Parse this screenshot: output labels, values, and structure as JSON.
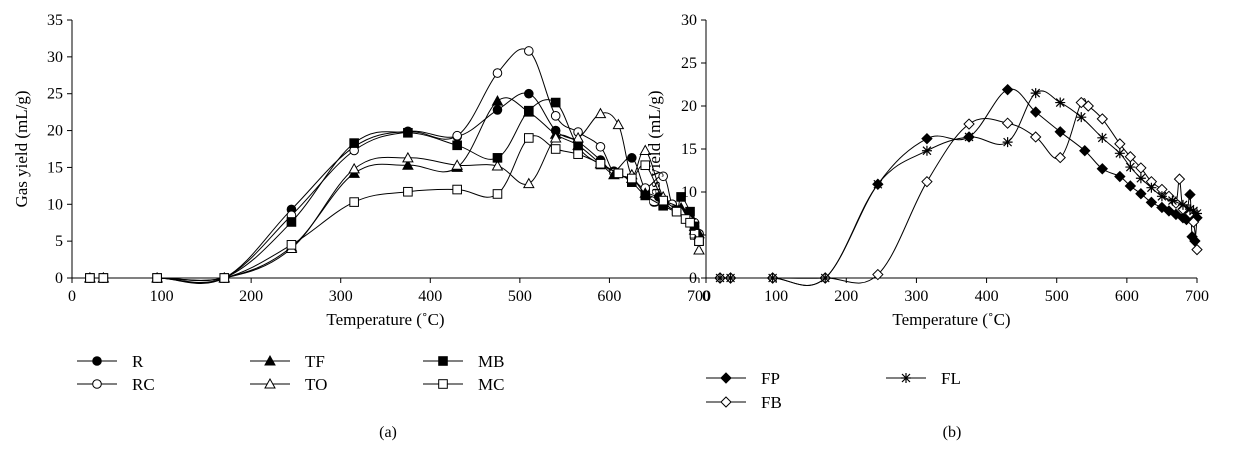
{
  "chart_data": [
    {
      "type": "line",
      "panel_label": "(a)",
      "xlabel": "Temperature (˚C)",
      "ylabel": "Gas yield (mL/g)",
      "xlim": [
        0,
        700
      ],
      "ylim": [
        0,
        35
      ],
      "xticks": [
        0,
        100,
        200,
        300,
        400,
        500,
        600,
        700
      ],
      "yticks": [
        0,
        5,
        10,
        15,
        20,
        25,
        30,
        35
      ],
      "grid": false,
      "legend_position": "bottom",
      "series": [
        {
          "name": "R",
          "marker": "circle-filled",
          "x": [
            20,
            35,
            95,
            170,
            245,
            315,
            375,
            430,
            475,
            510,
            540,
            565,
            590,
            605,
            625,
            640,
            655,
            670,
            680,
            690,
            695,
            700
          ],
          "y": [
            0,
            0,
            0,
            0,
            9.3,
            17.8,
            19.9,
            19.2,
            22.8,
            25.0,
            20.0,
            18.5,
            16.0,
            14.5,
            16.3,
            12.0,
            11.0,
            10.0,
            9.0,
            8.0,
            7.0,
            6.0
          ]
        },
        {
          "name": "RC",
          "marker": "circle-open",
          "x": [
            20,
            35,
            95,
            170,
            245,
            315,
            375,
            430,
            475,
            510,
            540,
            565,
            590,
            605,
            625,
            640,
            660,
            670,
            680,
            690,
            695,
            700
          ],
          "y": [
            0,
            0,
            0,
            0,
            8.5,
            17.3,
            19.8,
            19.3,
            27.8,
            30.8,
            22.0,
            19.8,
            17.8,
            14.3,
            13.5,
            12.2,
            13.8,
            10.0,
            9.0,
            8.0,
            7.5,
            6.0
          ]
        },
        {
          "name": "TF",
          "marker": "triangle-filled",
          "x": [
            20,
            35,
            95,
            170,
            245,
            315,
            375,
            430,
            475,
            510,
            540,
            565,
            590,
            605,
            625,
            640,
            660,
            680,
            690,
            695,
            700
          ],
          "y": [
            0,
            0,
            0,
            0,
            4.2,
            14.2,
            15.3,
            15.0,
            24.0,
            22.5,
            19.5,
            18.0,
            15.5,
            14.0,
            13.5,
            11.5,
            10.5,
            9.5,
            8.5,
            7.0,
            6.0
          ]
        },
        {
          "name": "TO",
          "marker": "triangle-open",
          "x": [
            20,
            35,
            95,
            170,
            245,
            315,
            375,
            430,
            475,
            510,
            540,
            565,
            590,
            610,
            625,
            640,
            660,
            680,
            690,
            695,
            700
          ],
          "y": [
            0,
            0,
            0,
            0,
            4.0,
            14.8,
            16.3,
            15.3,
            15.2,
            12.8,
            19.0,
            19.0,
            22.3,
            20.8,
            14.0,
            17.3,
            11.0,
            9.0,
            8.0,
            6.5,
            3.8
          ]
        },
        {
          "name": "MB",
          "marker": "square-filled",
          "x": [
            20,
            35,
            95,
            170,
            245,
            315,
            375,
            430,
            475,
            510,
            540,
            565,
            590,
            610,
            625,
            640,
            660,
            675,
            680,
            690,
            695,
            700
          ],
          "y": [
            0,
            0,
            0,
            0,
            7.6,
            18.3,
            19.7,
            18.0,
            16.3,
            22.7,
            23.8,
            17.8,
            15.4,
            14.2,
            13.0,
            11.2,
            9.8,
            9.2,
            11.0,
            9.0,
            7.0,
            5.0
          ]
        },
        {
          "name": "MC",
          "marker": "square-open",
          "x": [
            20,
            35,
            95,
            170,
            245,
            315,
            375,
            430,
            475,
            510,
            540,
            565,
            590,
            610,
            625,
            640,
            660,
            675,
            685,
            690,
            695,
            700
          ],
          "y": [
            0,
            0,
            0,
            0,
            4.5,
            10.3,
            11.7,
            12.0,
            11.4,
            19.0,
            17.5,
            16.8,
            15.5,
            14.2,
            13.5,
            15.3,
            10.5,
            9.0,
            8.0,
            7.5,
            6.0,
            5.0
          ]
        }
      ]
    },
    {
      "type": "line",
      "panel_label": "(b)",
      "xlabel": "Temperature (˚C)",
      "ylabel": "Gas yield (mL/g)",
      "xlim": [
        0,
        700
      ],
      "ylim": [
        0,
        30
      ],
      "xticks": [
        0,
        100,
        200,
        300,
        400,
        500,
        600,
        700
      ],
      "yticks": [
        0,
        5,
        10,
        15,
        20,
        25,
        30
      ],
      "grid": false,
      "legend_position": "bottom",
      "series": [
        {
          "name": "FP",
          "marker": "diamond-filled",
          "x": [
            20,
            35,
            95,
            170,
            245,
            315,
            375,
            430,
            470,
            505,
            540,
            565,
            590,
            605,
            620,
            635,
            650,
            660,
            670,
            680,
            685,
            690,
            693,
            697,
            700
          ],
          "y": [
            0,
            0,
            0,
            0,
            10.9,
            16.2,
            16.4,
            21.9,
            19.3,
            17.0,
            14.8,
            12.7,
            11.8,
            10.7,
            9.8,
            8.8,
            8.2,
            7.8,
            7.4,
            7.0,
            6.8,
            9.7,
            4.8,
            4.3,
            7.0
          ]
        },
        {
          "name": "FB",
          "marker": "diamond-open",
          "x": [
            20,
            35,
            95,
            170,
            245,
            315,
            375,
            430,
            470,
            505,
            535,
            545,
            565,
            590,
            605,
            620,
            635,
            650,
            660,
            670,
            675,
            680,
            690,
            695,
            700
          ],
          "y": [
            0,
            0,
            0,
            0,
            0.4,
            11.2,
            17.9,
            18.0,
            16.4,
            14.0,
            20.4,
            20.0,
            18.5,
            15.6,
            14.1,
            12.8,
            11.2,
            10.3,
            9.5,
            8.7,
            11.5,
            8.0,
            7.5,
            6.5,
            3.3
          ]
        },
        {
          "name": "FL",
          "marker": "star",
          "x": [
            20,
            35,
            95,
            170,
            245,
            315,
            375,
            430,
            470,
            505,
            535,
            565,
            590,
            605,
            620,
            635,
            650,
            665,
            680,
            690,
            695,
            700
          ],
          "y": [
            0,
            0,
            0,
            0,
            10.9,
            14.8,
            16.4,
            15.8,
            21.5,
            20.4,
            18.7,
            16.3,
            14.5,
            12.9,
            11.6,
            10.5,
            9.5,
            9.0,
            8.5,
            8.0,
            7.8,
            7.5
          ]
        }
      ]
    }
  ]
}
